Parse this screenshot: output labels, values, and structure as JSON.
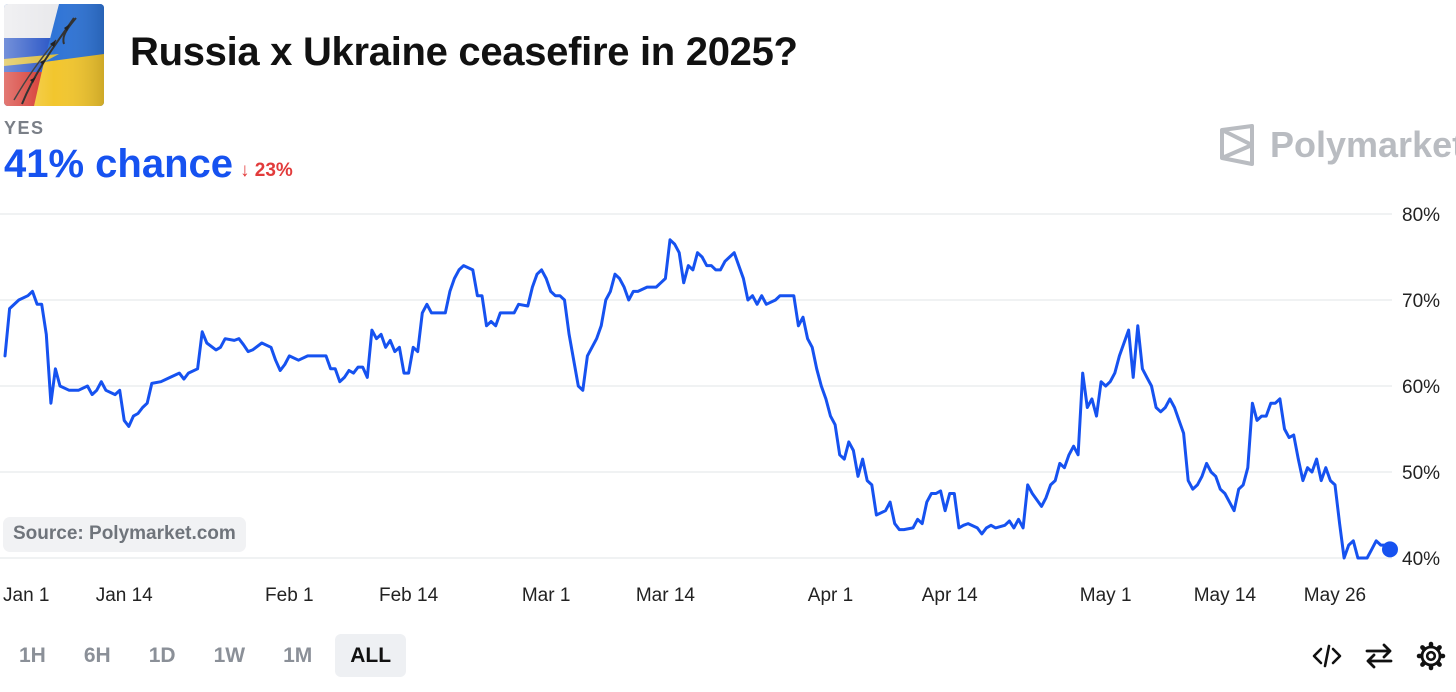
{
  "header": {
    "title": "Russia x Ukraine ceasefire in 2025?",
    "outcome_label": "YES",
    "chance_text": "41% chance",
    "change_arrow": "↓",
    "change_text": "23%",
    "brand": "Polymarket",
    "icon": "ukraine-russia-flag-icon"
  },
  "source_label": "Source: Polymarket.com",
  "time_ranges": [
    {
      "label": "1H",
      "active": false
    },
    {
      "label": "6H",
      "active": false
    },
    {
      "label": "1D",
      "active": false
    },
    {
      "label": "1W",
      "active": false
    },
    {
      "label": "1M",
      "active": false
    },
    {
      "label": "ALL",
      "active": true
    }
  ],
  "tools": [
    "embed-code-icon",
    "swap-arrows-icon",
    "settings-gear-icon"
  ],
  "colors": {
    "line": "#1652f0",
    "change_down": "#e23b3b",
    "grid": "#e8e9ec",
    "muted_text": "#8b9098"
  },
  "chart_data": {
    "type": "line",
    "title": "",
    "xlabel": "",
    "ylabel": "",
    "ylim": [
      40,
      80
    ],
    "y_ticks": [
      80,
      70,
      60,
      50,
      40
    ],
    "y_tick_labels": [
      "80%",
      "70%",
      "60%",
      "50%",
      "40%"
    ],
    "y_axis_side": "right",
    "grid": true,
    "x_tick_labels": [
      "Jan 1",
      "Jan 14",
      "Feb 1",
      "Feb 14",
      "Mar 1",
      "Mar 14",
      "Apr 1",
      "Apr 14",
      "May 1",
      "May 14",
      "May 26"
    ],
    "x_tick_days": [
      0,
      13,
      31,
      44,
      59,
      72,
      90,
      103,
      120,
      133,
      145
    ],
    "series": [
      {
        "points": [
          [
            0,
            63.5
          ],
          [
            0.5,
            69
          ],
          [
            1.5,
            70
          ],
          [
            2.5,
            70.5
          ],
          [
            3,
            71
          ],
          [
            3.5,
            69.5
          ],
          [
            4,
            69.5
          ],
          [
            4.5,
            66
          ],
          [
            5,
            58
          ],
          [
            5.5,
            62
          ],
          [
            6,
            60
          ],
          [
            7,
            59.5
          ],
          [
            8,
            59.5
          ],
          [
            9,
            60
          ],
          [
            9.5,
            59
          ],
          [
            10,
            59.5
          ],
          [
            10.5,
            60.5
          ],
          [
            11,
            59.5
          ],
          [
            12,
            59
          ],
          [
            12.5,
            59.5
          ],
          [
            13,
            56
          ],
          [
            13.5,
            55.3
          ],
          [
            14,
            56.5
          ],
          [
            14.5,
            56.8
          ],
          [
            15,
            57.5
          ],
          [
            15.5,
            58
          ],
          [
            16,
            60.3
          ],
          [
            17,
            60.5
          ],
          [
            18,
            61
          ],
          [
            19,
            61.5
          ],
          [
            19.5,
            60.8
          ],
          [
            20,
            61.5
          ],
          [
            21,
            62
          ],
          [
            21.5,
            66.3
          ],
          [
            22,
            65
          ],
          [
            23,
            64.2
          ],
          [
            23.5,
            64.5
          ],
          [
            24,
            65.5
          ],
          [
            25,
            65.3
          ],
          [
            25.5,
            65.5
          ],
          [
            26,
            64.8
          ],
          [
            26.5,
            64
          ],
          [
            27,
            64.2
          ],
          [
            28,
            65
          ],
          [
            29,
            64.5
          ],
          [
            29.5,
            63
          ],
          [
            30,
            61.8
          ],
          [
            30.5,
            62.5
          ],
          [
            31,
            63.5
          ],
          [
            32,
            63
          ],
          [
            33,
            63.5
          ],
          [
            34,
            63.5
          ],
          [
            35,
            63.5
          ],
          [
            35.5,
            62
          ],
          [
            36,
            62
          ],
          [
            36.5,
            60.5
          ],
          [
            37,
            61
          ],
          [
            37.5,
            61.8
          ],
          [
            38,
            61.5
          ],
          [
            38.5,
            62.2
          ],
          [
            39,
            62.2
          ],
          [
            39.5,
            61
          ],
          [
            40,
            66.5
          ],
          [
            40.5,
            65.5
          ],
          [
            41,
            66
          ],
          [
            41.5,
            64.5
          ],
          [
            42,
            65.3
          ],
          [
            42.5,
            64
          ],
          [
            43,
            64.5
          ],
          [
            43.5,
            61.5
          ],
          [
            44,
            61.5
          ],
          [
            44.5,
            64.5
          ],
          [
            45,
            64
          ],
          [
            45.5,
            68.5
          ],
          [
            46,
            69.5
          ],
          [
            46.5,
            68.5
          ],
          [
            48,
            68.5
          ],
          [
            48.5,
            71
          ],
          [
            49,
            72.5
          ],
          [
            49.5,
            73.5
          ],
          [
            50,
            74
          ],
          [
            51,
            73.5
          ],
          [
            51.5,
            70.5
          ],
          [
            52,
            70.5
          ],
          [
            52.5,
            67
          ],
          [
            53,
            67.5
          ],
          [
            53.5,
            67
          ],
          [
            54,
            68.5
          ],
          [
            55,
            68.5
          ],
          [
            55.5,
            68.5
          ],
          [
            56,
            69.5
          ],
          [
            57,
            69.3
          ],
          [
            57.5,
            71.5
          ],
          [
            58,
            73
          ],
          [
            58.5,
            73.5
          ],
          [
            59,
            72.5
          ],
          [
            59.5,
            71
          ],
          [
            60,
            70.5
          ],
          [
            60.5,
            70.5
          ],
          [
            61,
            70
          ],
          [
            61.5,
            66
          ],
          [
            62,
            63
          ],
          [
            62.5,
            60
          ],
          [
            63,
            59.5
          ],
          [
            63.5,
            63.5
          ],
          [
            64,
            64.5
          ],
          [
            64.5,
            65.5
          ],
          [
            65,
            67
          ],
          [
            65.5,
            70
          ],
          [
            66,
            71
          ],
          [
            66.5,
            73
          ],
          [
            67,
            72.5
          ],
          [
            67.5,
            71.5
          ],
          [
            68,
            70
          ],
          [
            68.5,
            71
          ],
          [
            69,
            71
          ],
          [
            70,
            71.5
          ],
          [
            71,
            71.5
          ],
          [
            71.5,
            72
          ],
          [
            72,
            72.5
          ],
          [
            72.5,
            77
          ],
          [
            73,
            76.5
          ],
          [
            73.5,
            75.5
          ],
          [
            74,
            72
          ],
          [
            74.5,
            74
          ],
          [
            75,
            73.5
          ],
          [
            75.5,
            75.5
          ],
          [
            76,
            75
          ],
          [
            76.5,
            74
          ],
          [
            77,
            74
          ],
          [
            77.5,
            73.5
          ],
          [
            78,
            73.5
          ],
          [
            78.5,
            74.5
          ],
          [
            79,
            75
          ],
          [
            79.5,
            75.5
          ],
          [
            80,
            74
          ],
          [
            80.5,
            72.5
          ],
          [
            81,
            70
          ],
          [
            81.5,
            70.5
          ],
          [
            82,
            69.5
          ],
          [
            82.5,
            70.5
          ],
          [
            83,
            69.5
          ],
          [
            84,
            70
          ],
          [
            84.5,
            70.5
          ],
          [
            86,
            70.5
          ],
          [
            86.5,
            67
          ],
          [
            87,
            68
          ],
          [
            87.5,
            65.5
          ],
          [
            88,
            64.5
          ],
          [
            88.5,
            62
          ],
          [
            89,
            60
          ],
          [
            89.5,
            58.5
          ],
          [
            90,
            56.5
          ],
          [
            90.5,
            55.5
          ],
          [
            91,
            52
          ],
          [
            91.5,
            51.5
          ],
          [
            92,
            53.5
          ],
          [
            92.5,
            52.5
          ],
          [
            93,
            49.5
          ],
          [
            93.5,
            51.5
          ],
          [
            94,
            49
          ],
          [
            94.5,
            48.5
          ],
          [
            95,
            45
          ],
          [
            96,
            45.5
          ],
          [
            96.5,
            46.5
          ],
          [
            97,
            44
          ],
          [
            97.5,
            43.3
          ],
          [
            98,
            43.3
          ],
          [
            99,
            43.5
          ],
          [
            99.5,
            44.5
          ],
          [
            100,
            44
          ],
          [
            100.5,
            46.5
          ],
          [
            101,
            47.5
          ],
          [
            101.5,
            47.5
          ],
          [
            102,
            47.8
          ],
          [
            102.5,
            45.5
          ],
          [
            103,
            47.5
          ],
          [
            103.5,
            47.5
          ],
          [
            104,
            43.5
          ],
          [
            104.5,
            43.8
          ],
          [
            105,
            44
          ],
          [
            106,
            43.5
          ],
          [
            106.5,
            42.8
          ],
          [
            107,
            43.5
          ],
          [
            107.5,
            43.8
          ],
          [
            108,
            43.5
          ],
          [
            109,
            43.8
          ],
          [
            109.5,
            44.3
          ],
          [
            110,
            43.5
          ],
          [
            110.5,
            44.5
          ],
          [
            111,
            43.5
          ],
          [
            111.5,
            48.5
          ],
          [
            112,
            47.5
          ],
          [
            113,
            46
          ],
          [
            113.5,
            47
          ],
          [
            114,
            48.5
          ],
          [
            114.5,
            49
          ],
          [
            115,
            51
          ],
          [
            115.5,
            50.5
          ],
          [
            116,
            52
          ],
          [
            116.5,
            53
          ],
          [
            117,
            52
          ],
          [
            117.5,
            61.5
          ],
          [
            118,
            57.5
          ],
          [
            118.5,
            58.5
          ],
          [
            119,
            56.5
          ],
          [
            119.5,
            60.5
          ],
          [
            120,
            60
          ],
          [
            120.5,
            60.5
          ],
          [
            121,
            61.5
          ],
          [
            121.5,
            63.5
          ],
          [
            122,
            65
          ],
          [
            122.5,
            66.5
          ],
          [
            123,
            61
          ],
          [
            123.5,
            67
          ],
          [
            124,
            62
          ],
          [
            124.5,
            61
          ],
          [
            125,
            60
          ],
          [
            125.5,
            57.5
          ],
          [
            126,
            57
          ],
          [
            126.5,
            57.5
          ],
          [
            127,
            58.5
          ],
          [
            127.5,
            57.5
          ],
          [
            128,
            56
          ],
          [
            128.5,
            54.5
          ],
          [
            129,
            49
          ],
          [
            129.5,
            48
          ],
          [
            130,
            48.5
          ],
          [
            130.5,
            49.5
          ],
          [
            131,
            51
          ],
          [
            131.5,
            50
          ],
          [
            132,
            49.5
          ],
          [
            132.5,
            48
          ],
          [
            133,
            47.5
          ],
          [
            133.5,
            46.5
          ],
          [
            134,
            45.5
          ],
          [
            134.5,
            48
          ],
          [
            135,
            48.5
          ],
          [
            135.5,
            50.5
          ],
          [
            136,
            58
          ],
          [
            136.5,
            56
          ],
          [
            137,
            56.5
          ],
          [
            137.5,
            56.5
          ],
          [
            138,
            58
          ],
          [
            138.5,
            58
          ],
          [
            139,
            58.5
          ],
          [
            139.5,
            55
          ],
          [
            140,
            54
          ],
          [
            140.5,
            54.3
          ],
          [
            141,
            51.5
          ],
          [
            141.5,
            49
          ],
          [
            142,
            50.5
          ],
          [
            142.5,
            50
          ],
          [
            143,
            51.5
          ],
          [
            143.5,
            49
          ],
          [
            144,
            50.5
          ],
          [
            144.5,
            49
          ],
          [
            145,
            48.5
          ],
          [
            145.5,
            44
          ],
          [
            146,
            40
          ],
          [
            146.5,
            41.5
          ],
          [
            147,
            42
          ],
          [
            147.5,
            40
          ],
          [
            148,
            40
          ],
          [
            148.5,
            40
          ],
          [
            149,
            41
          ],
          [
            149.5,
            42
          ],
          [
            150,
            41.5
          ],
          [
            150.5,
            41.5
          ],
          [
            151,
            41
          ]
        ]
      }
    ]
  }
}
